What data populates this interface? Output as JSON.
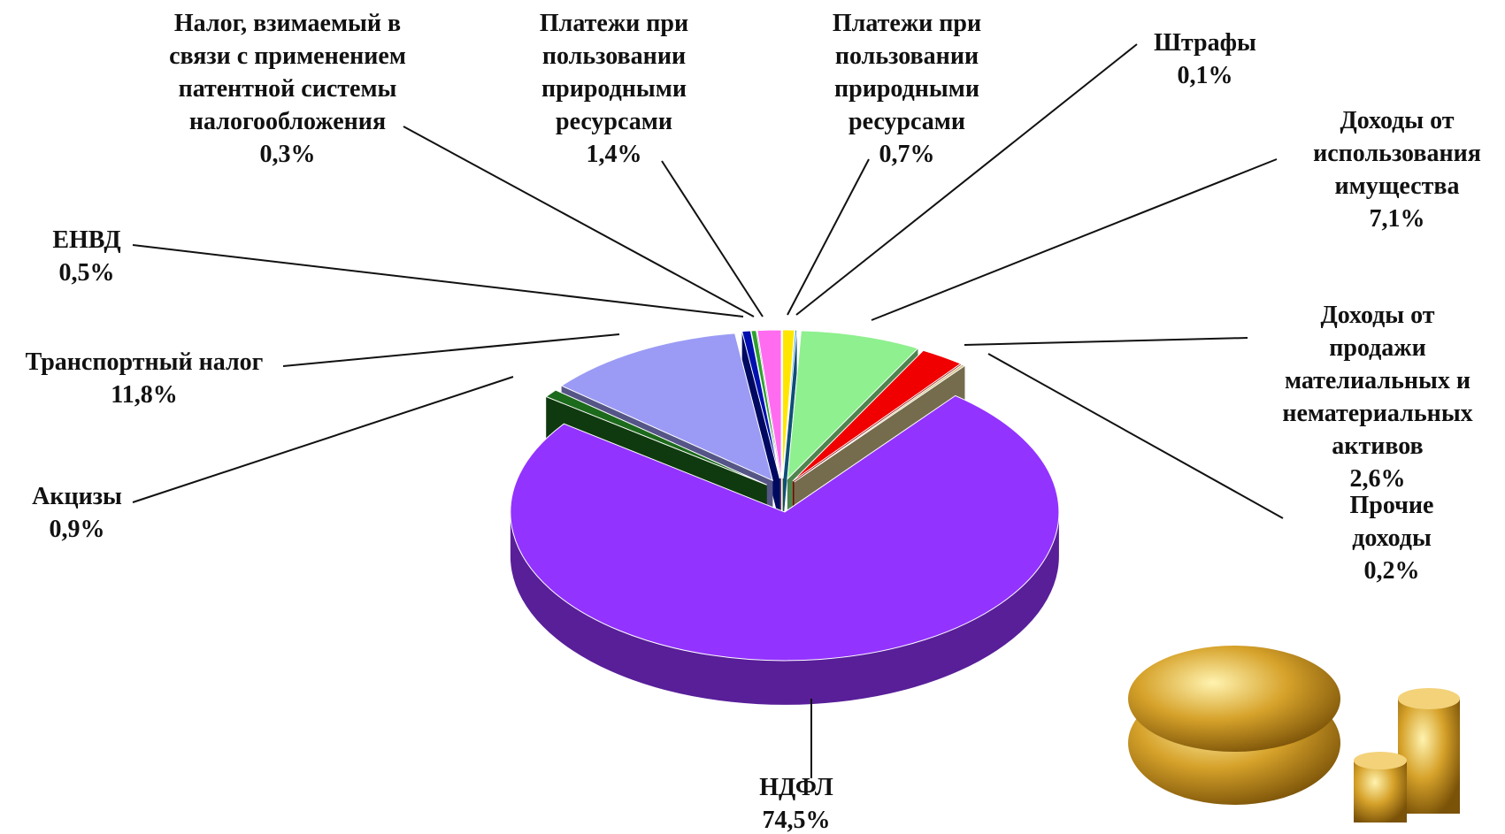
{
  "chart_data": {
    "type": "pie3d",
    "categories": [
      "Платежи при\nпользовании\nприродными\nресурсами",
      "Штрафы",
      "Доходы от\nиспользования\nимущества",
      "Доходы от продажи\nмателиальных и\nнематериальных\nактивов",
      "Прочие доходы",
      "НДФЛ",
      "Акцизы",
      "Транспортный налог",
      "ЕНВД",
      "Налог, взимаемый в\nсвязи с применением\nпатентной системы\nналогообложения",
      "Платежи при\nпользовании\nприродными\nресурсами"
    ],
    "values": [
      0.7,
      0.1,
      7.1,
      2.6,
      0.2,
      74.5,
      0.9,
      11.8,
      0.5,
      0.3,
      1.4
    ],
    "value_labels": [
      "0,7%",
      "0,1%",
      "7,1%",
      "2,6%",
      "0,2%",
      "74,5%",
      "0,9%",
      "11,8%",
      "0,5%",
      "0,3%",
      "1,4%"
    ],
    "colors": [
      "#ffe600",
      "#1a8fd8",
      "#8ef08e",
      "#f00000",
      "#d4c48c",
      "#9333ff",
      "#1c6a1c",
      "#9b9bf5",
      "#0010b0",
      "#2ea02e",
      "#ff6cf0"
    ]
  }
}
